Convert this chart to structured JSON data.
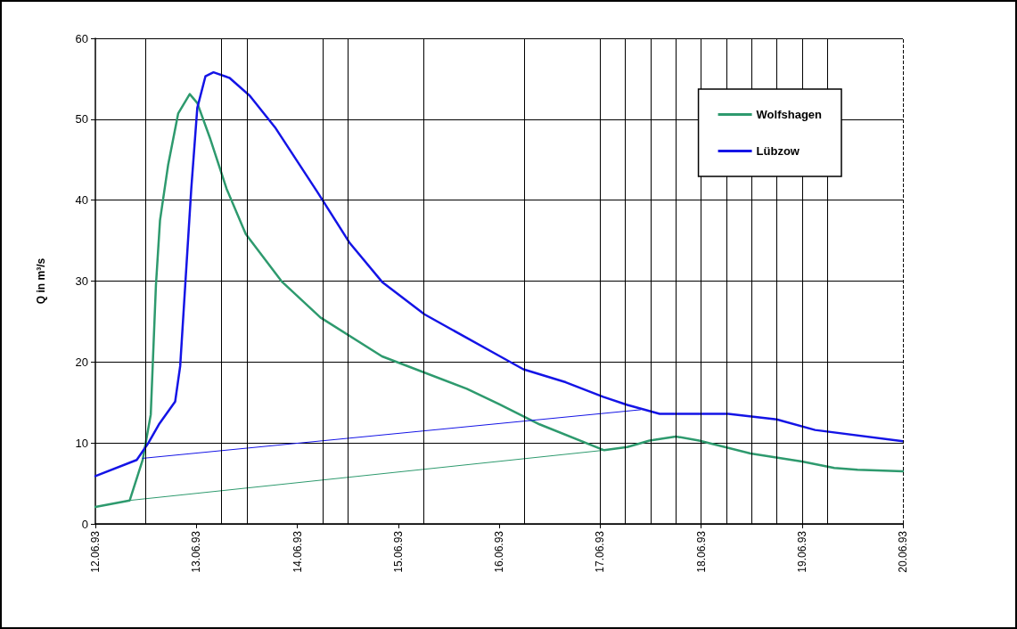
{
  "chart_data": {
    "type": "line",
    "ylabel": "Q in m³/s",
    "xlim": [
      "1993-06-12",
      "1993-06-20"
    ],
    "xticks": [
      {
        "value": "1993-06-12",
        "label": "12.06.93"
      },
      {
        "value": "1993-06-13",
        "label": "13.06.93"
      },
      {
        "value": "1993-06-14",
        "label": "14.06.93"
      },
      {
        "value": "1993-06-15",
        "label": "15.06.93"
      },
      {
        "value": "1993-06-16",
        "label": "16.06.93"
      },
      {
        "value": "1993-06-17",
        "label": "17.06.93"
      },
      {
        "value": "1993-06-18",
        "label": "18.06.93"
      },
      {
        "value": "1993-06-19",
        "label": "19.06.93"
      },
      {
        "value": "1993-06-20",
        "label": "20.06.93"
      }
    ],
    "ylim": [
      0,
      60
    ],
    "yticks": [
      0,
      10,
      20,
      30,
      40,
      50,
      60
    ],
    "grid": "y",
    "legend": "top right",
    "marker": "none",
    "line_style": "solid",
    "ref_lines": [
      {
        "axis": "x",
        "value": "1993-06-12T12:00",
        "color": "#000000"
      },
      {
        "axis": "x",
        "value": "1993-06-13T06:00",
        "color": "#000000"
      },
      {
        "axis": "x",
        "value": "1993-06-13T12:00",
        "color": "#000000"
      },
      {
        "axis": "x",
        "value": "1993-06-14T06:00",
        "color": "#000000"
      },
      {
        "axis": "x",
        "value": "1993-06-14T12:00",
        "color": "#000000"
      },
      {
        "axis": "x",
        "value": "1993-06-15T06:00",
        "color": "#000000"
      },
      {
        "axis": "x",
        "value": "1993-06-16T06:00",
        "color": "#000000"
      },
      {
        "axis": "x",
        "value": "1993-06-17T00:00",
        "color": "#000000"
      },
      {
        "axis": "x",
        "value": "1993-06-17T06:00",
        "color": "#000000"
      },
      {
        "axis": "x",
        "value": "1993-06-17T12:00",
        "color": "#000000"
      },
      {
        "axis": "x",
        "value": "1993-06-17T18:00",
        "color": "#000000"
      },
      {
        "axis": "x",
        "value": "1993-06-18T00:00",
        "color": "#000000"
      },
      {
        "axis": "x",
        "value": "1993-06-18T06:00",
        "color": "#000000"
      },
      {
        "axis": "x",
        "value": "1993-06-18T12:00",
        "color": "#000000"
      },
      {
        "axis": "x",
        "value": "1993-06-18T18:00",
        "color": "#000000"
      },
      {
        "axis": "x",
        "value": "1993-06-19T00:00",
        "color": "#000000"
      },
      {
        "axis": "x",
        "value": "1993-06-19T06:00",
        "color": "#000000"
      }
    ],
    "series": [
      {
        "name": "Wolfshagen",
        "color": "#2e9a6e",
        "x": [
          "1993-06-12T00:00",
          "1993-06-12T08:10",
          "1993-06-12T11:15",
          "1993-06-12T13:10",
          "1993-06-12T14:24",
          "1993-06-12T15:22",
          "1993-06-12T17:17",
          "1993-06-12T19:41",
          "1993-06-12T22:26",
          "1993-06-13T00:14",
          "1993-06-13T03:22",
          "1993-06-13T07:12",
          "1993-06-13T11:46",
          "1993-06-13T20:24",
          "1993-06-14T05:31",
          "1993-06-14T20:10",
          "1993-06-15T16:19",
          "1993-06-16T00:00",
          "1993-06-16T09:36",
          "1993-06-17T00:58",
          "1993-06-17T06:29",
          "1993-06-17T11:46",
          "1993-06-17T18:00",
          "1993-06-17T23:31",
          "1993-06-18T11:46",
          "1993-06-19T00:00",
          "1993-06-19T07:41",
          "1993-06-19T13:12",
          "1993-06-20T00:00"
        ],
        "values": [
          2.1,
          2.9,
          7.9,
          13.5,
          29.5,
          37.5,
          44.3,
          50.7,
          53.1,
          52.0,
          47.5,
          41.4,
          35.8,
          29.9,
          25.5,
          20.7,
          16.7,
          14.8,
          12.3,
          9.1,
          9.5,
          10.3,
          10.8,
          10.3,
          8.7,
          7.7,
          6.9,
          6.7,
          6.5
        ]
      },
      {
        "name": "Lübzow",
        "color": "#1414e6",
        "x": [
          "1993-06-12T00:00",
          "1993-06-12T09:50",
          "1993-06-12T12:29",
          "1993-06-12T15:07",
          "1993-06-12T18:58",
          "1993-06-12T20:10",
          "1993-06-12T21:22",
          "1993-06-12T22:48",
          "1993-06-13T00:14",
          "1993-06-13T02:10",
          "1993-06-13T04:05",
          "1993-06-13T07:55",
          "1993-06-13T12:43",
          "1993-06-13T18:43",
          "1993-06-14T04:48",
          "1993-06-14T12:29",
          "1993-06-14T20:10",
          "1993-06-15T06:14",
          "1993-06-16T00:14",
          "1993-06-16T05:46",
          "1993-06-16T15:50",
          "1993-06-17T00:43",
          "1993-06-17T06:29",
          "1993-06-17T14:10",
          "1993-06-18T06:29",
          "1993-06-18T18:00",
          "1993-06-19T03:07",
          "1993-06-20T00:00"
        ],
        "values": [
          5.9,
          7.9,
          9.9,
          12.3,
          15.1,
          19.5,
          29.5,
          41.4,
          51.4,
          55.3,
          55.8,
          55.1,
          52.9,
          49.0,
          41.0,
          34.7,
          29.9,
          25.9,
          20.7,
          19.1,
          17.5,
          15.7,
          14.7,
          13.6,
          13.6,
          12.9,
          11.6,
          10.2
        ]
      },
      {
        "color": "#2e9a6e",
        "x": [
          "1993-06-12T08:10",
          "1993-06-17T00:58"
        ],
        "values": [
          2.9,
          9.1
        ]
      },
      {
        "color": "#1414e6",
        "x": [
          "1993-06-12T11:15",
          "1993-06-17T09:36"
        ],
        "values": [
          8.1,
          14.1
        ]
      }
    ]
  }
}
